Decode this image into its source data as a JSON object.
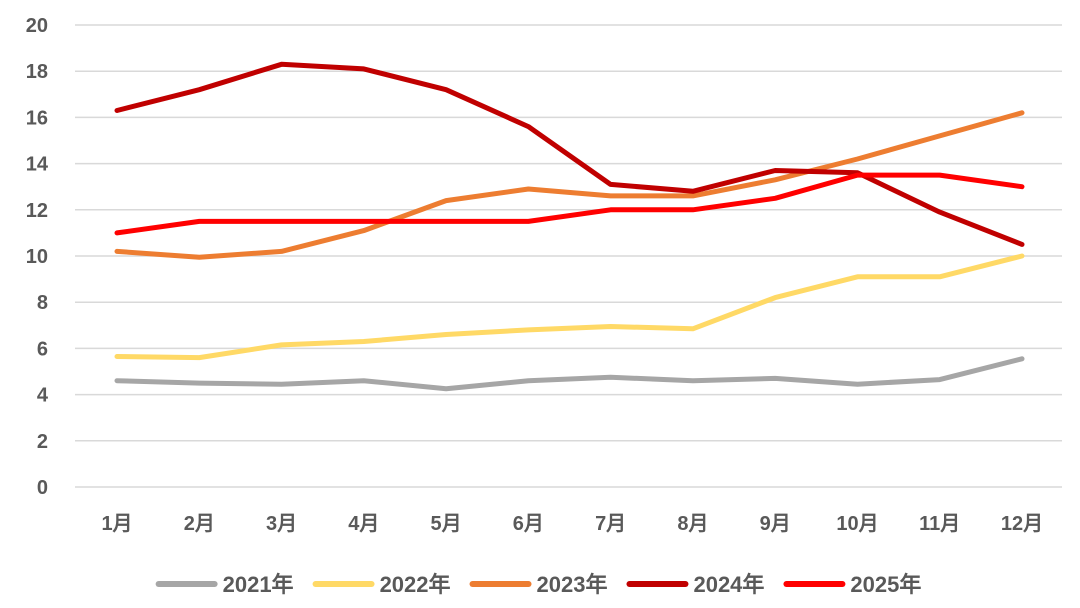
{
  "chart_data": {
    "type": "line",
    "categories": [
      "1月",
      "2月",
      "3月",
      "4月",
      "5月",
      "6月",
      "7月",
      "8月",
      "9月",
      "10月",
      "11月",
      "12月"
    ],
    "ylim": [
      0,
      20
    ],
    "yticks": [
      0,
      2,
      4,
      6,
      8,
      10,
      12,
      14,
      16,
      18,
      20
    ],
    "grid": true,
    "legend_position": "bottom",
    "series": [
      {
        "name": "2021年",
        "color": "#a6a6a6",
        "values": [
          4.6,
          4.5,
          4.45,
          4.6,
          4.25,
          4.6,
          4.75,
          4.6,
          4.7,
          4.45,
          4.65,
          5.55
        ]
      },
      {
        "name": "2022年",
        "color": "#ffd966",
        "values": [
          5.65,
          5.6,
          6.15,
          6.3,
          6.6,
          6.8,
          6.95,
          6.85,
          8.2,
          9.1,
          9.1,
          10.0
        ]
      },
      {
        "name": "2023年",
        "color": "#ed7d31",
        "values": [
          10.2,
          9.95,
          10.2,
          11.1,
          12.4,
          12.9,
          12.6,
          12.6,
          13.3,
          14.2,
          15.2,
          16.2
        ]
      },
      {
        "name": "2024年",
        "color": "#c00000",
        "values": [
          16.3,
          17.2,
          18.3,
          18.1,
          17.2,
          15.6,
          13.1,
          12.8,
          13.7,
          13.6,
          11.9,
          10.5
        ]
      },
      {
        "name": "2025年",
        "color": "#ff0000",
        "values": [
          11.0,
          11.5,
          11.5,
          11.5,
          11.5,
          11.5,
          12.0,
          12.0,
          12.5,
          13.5,
          13.5,
          13.0
        ]
      }
    ]
  }
}
